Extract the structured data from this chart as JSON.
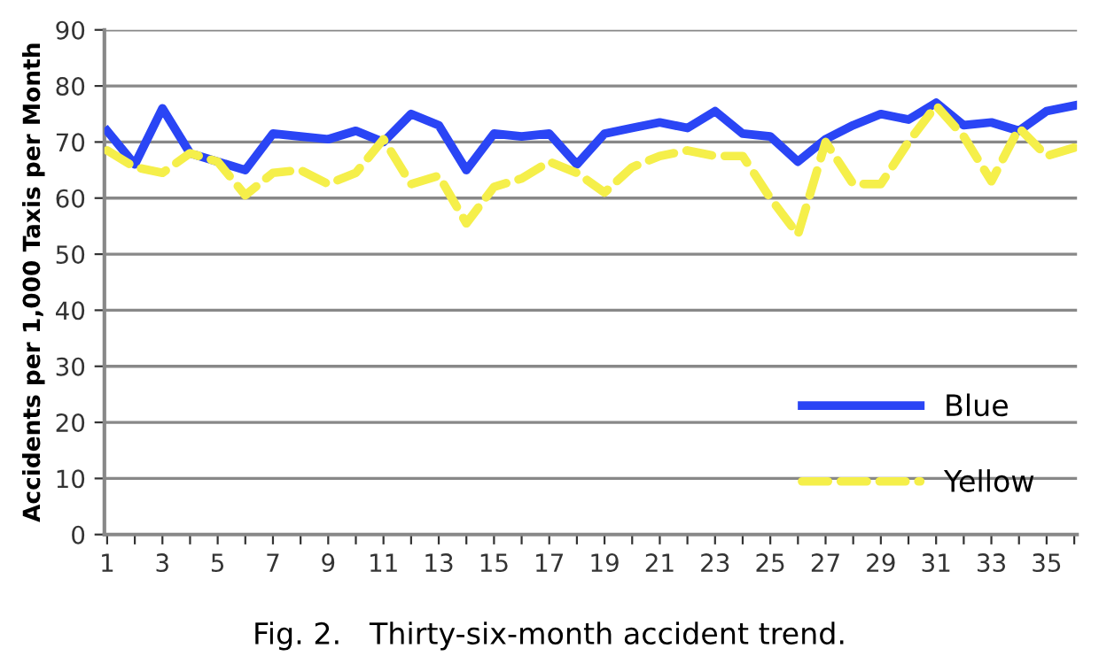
{
  "chart_data": {
    "type": "line",
    "title": "Fig. 2.   Thirty-six-month accident trend.",
    "ylabel": "Accidents per 1,000 Taxis per Month",
    "categories": [
      "1",
      null,
      "3",
      null,
      "5",
      null,
      "7",
      null,
      "9",
      null,
      "11",
      null,
      "13",
      null,
      "15",
      null,
      "17",
      null,
      "19",
      null,
      "21",
      null,
      "23",
      null,
      "25",
      null,
      "27",
      null,
      "29",
      null,
      "31",
      null,
      "33",
      null,
      "35",
      null
    ],
    "series": [
      {
        "name": "Blue",
        "color": "#2a45f5",
        "line_style": "solid",
        "values": [
          72,
          66,
          76,
          68,
          66.5,
          65,
          71.5,
          71,
          70.5,
          72,
          70,
          75,
          73,
          65,
          71.5,
          71,
          71.5,
          66,
          71.5,
          72.5,
          73.5,
          72.5,
          75.5,
          71.5,
          71,
          66.5,
          70.5,
          73,
          75,
          74,
          77,
          73,
          73.5,
          72,
          75.5,
          76.5
        ]
      },
      {
        "name": "Yellow",
        "color": "#f5ef4a",
        "line_style": "dashed",
        "values": [
          68.5,
          65.5,
          64.5,
          68,
          66.5,
          60.5,
          64.5,
          65,
          62.5,
          64.5,
          70.5,
          62.5,
          64,
          55.5,
          62,
          63.5,
          66.5,
          64.5,
          61,
          65.5,
          67.5,
          68.5,
          67.5,
          67.5,
          60,
          53.5,
          70,
          62.5,
          62.5,
          70,
          76.5,
          71,
          63,
          72.5,
          67.5,
          69
        ]
      }
    ],
    "ylim": [
      0,
      90
    ],
    "yticks": [
      0,
      10,
      20,
      30,
      40,
      50,
      60,
      70,
      80,
      90
    ],
    "grid": "y",
    "legend": "bottom right",
    "marker": "none"
  }
}
